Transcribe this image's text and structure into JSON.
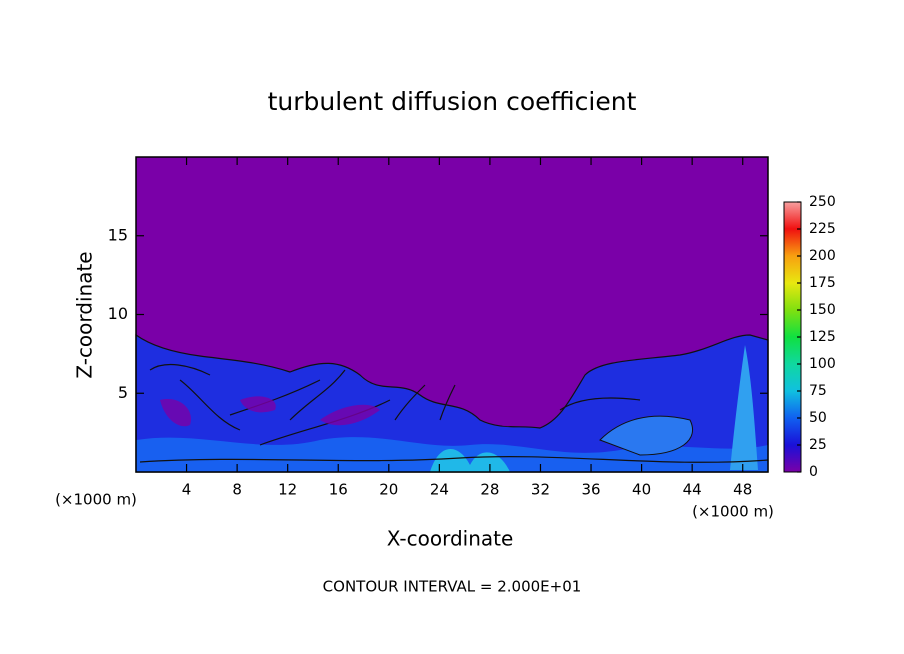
{
  "chart_data": {
    "type": "contour",
    "title": "turbulent diffusion coefficient",
    "xlabel": "X-coordinate",
    "ylabel": "Z-coordinate",
    "x_unit": "(×1000 m)",
    "x_unit_right": "(×1000 m)",
    "footnote": "CONTOUR INTERVAL = 2.000E+01",
    "xlim": [
      0,
      50
    ],
    "ylim": [
      0,
      20
    ],
    "xticks": [
      4,
      8,
      12,
      16,
      20,
      24,
      28,
      32,
      36,
      40,
      44,
      48
    ],
    "yticks": [
      5,
      10,
      15
    ],
    "colorbar": {
      "lim": [
        0,
        250
      ],
      "ticks": [
        0,
        25,
        50,
        75,
        100,
        125,
        150,
        175,
        200,
        225,
        250
      ],
      "colors": [
        "#7a00a8",
        "#1a10d8",
        "#1060f0",
        "#10c0e0",
        "#10d8a0",
        "#10e040",
        "#80e010",
        "#e8e810",
        "#f8a010",
        "#f01010",
        "#f8a0a0"
      ]
    }
  }
}
